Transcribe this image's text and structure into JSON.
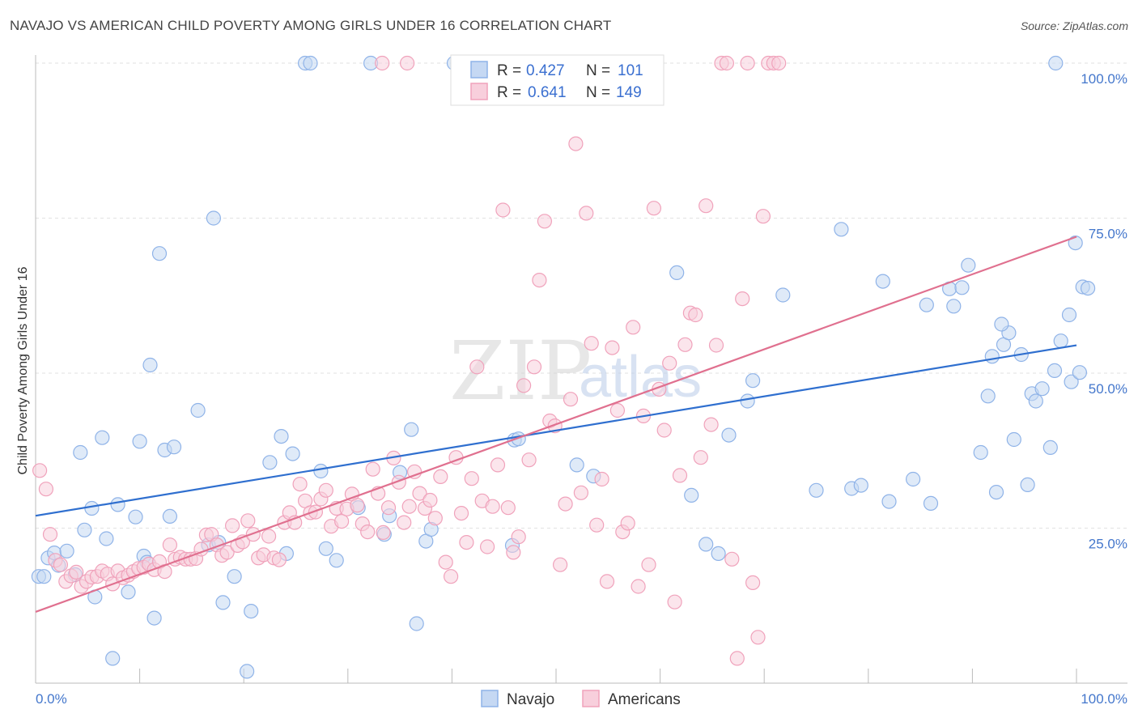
{
  "title": "NAVAJO VS AMERICAN CHILD POVERTY AMONG GIRLS UNDER 16 CORRELATION CHART",
  "source": "Source: ZipAtlas.com",
  "watermark": {
    "part1": "ZIP",
    "part2": "atlas"
  },
  "chart_data": {
    "type": "scatter",
    "ylabel": "Child Poverty Among Girls Under 16",
    "xlim": [
      0,
      100
    ],
    "ylim": [
      0,
      100
    ],
    "x_tick_labels": [
      "0.0%",
      "100.0%"
    ],
    "y_tick_labels": [
      {
        "value": 100,
        "label": "100.0%"
      },
      {
        "value": 75,
        "label": "75.0%"
      },
      {
        "value": 50,
        "label": "50.0%"
      },
      {
        "value": 25,
        "label": "25.0%"
      }
    ],
    "legend": {
      "position": "top-center",
      "rows": [
        {
          "r_label": "R = ",
          "r_value": "0.427",
          "n_label": "N = ",
          "n_value": "101"
        },
        {
          "r_label": "R = ",
          "r_value": "0.641",
          "n_label": "N = ",
          "n_value": "149"
        }
      ]
    },
    "series": [
      {
        "name": "Navajo",
        "color": "#8fb3e8",
        "fill": "#c5d8f3",
        "line_color": "#2f6fcf",
        "trend": {
          "x0": 0,
          "y0": 27.0,
          "x1": 100,
          "y1": 54.5
        },
        "points": [
          [
            0.3,
            17.2
          ],
          [
            0.8,
            17.2
          ],
          [
            1.2,
            20.2
          ],
          [
            1.8,
            21.0
          ],
          [
            2.2,
            19.0
          ],
          [
            3.0,
            21.3
          ],
          [
            3.8,
            17.5
          ],
          [
            4.3,
            37.2
          ],
          [
            4.7,
            24.7
          ],
          [
            5.4,
            28.2
          ],
          [
            5.7,
            13.9
          ],
          [
            6.4,
            39.6
          ],
          [
            6.8,
            23.3
          ],
          [
            7.4,
            4.0
          ],
          [
            7.9,
            28.8
          ],
          [
            8.9,
            14.7
          ],
          [
            9.6,
            26.8
          ],
          [
            10.0,
            39.0
          ],
          [
            10.4,
            20.5
          ],
          [
            10.7,
            19.5
          ],
          [
            11.0,
            51.3
          ],
          [
            11.4,
            10.5
          ],
          [
            11.9,
            69.3
          ],
          [
            12.4,
            37.6
          ],
          [
            12.9,
            26.9
          ],
          [
            13.3,
            38.1
          ],
          [
            15.6,
            44.0
          ],
          [
            16.6,
            22.3
          ],
          [
            17.1,
            75.0
          ],
          [
            17.6,
            22.7
          ],
          [
            18.0,
            13.0
          ],
          [
            19.1,
            17.2
          ],
          [
            20.3,
            1.9
          ],
          [
            20.7,
            11.6
          ],
          [
            22.5,
            35.6
          ],
          [
            23.6,
            39.8
          ],
          [
            24.1,
            20.9
          ],
          [
            24.7,
            37.0
          ],
          [
            25.9,
            100
          ],
          [
            26.4,
            100
          ],
          [
            27.4,
            34.2
          ],
          [
            27.9,
            21.7
          ],
          [
            28.9,
            19.8
          ],
          [
            31.0,
            28.3
          ],
          [
            32.2,
            100
          ],
          [
            33.5,
            24.0
          ],
          [
            34.0,
            27.0
          ],
          [
            35.0,
            34.0
          ],
          [
            36.1,
            40.9
          ],
          [
            36.6,
            9.6
          ],
          [
            37.5,
            22.9
          ],
          [
            38.0,
            24.8
          ],
          [
            40.2,
            100
          ],
          [
            45.8,
            22.2
          ],
          [
            46.0,
            39.2
          ],
          [
            46.4,
            39.4
          ],
          [
            52.0,
            35.2
          ],
          [
            53.6,
            33.4
          ],
          [
            61.6,
            66.2
          ],
          [
            63.0,
            30.3
          ],
          [
            64.4,
            22.4
          ],
          [
            65.6,
            20.9
          ],
          [
            66.6,
            40.0
          ],
          [
            68.4,
            45.5
          ],
          [
            68.9,
            48.8
          ],
          [
            71.8,
            62.6
          ],
          [
            75.0,
            31.1
          ],
          [
            77.4,
            73.2
          ],
          [
            78.4,
            31.4
          ],
          [
            79.3,
            31.9
          ],
          [
            81.4,
            64.8
          ],
          [
            82.0,
            29.3
          ],
          [
            84.3,
            32.9
          ],
          [
            85.6,
            61.0
          ],
          [
            86.0,
            29.0
          ],
          [
            87.8,
            63.6
          ],
          [
            88.2,
            60.8
          ],
          [
            89.0,
            63.8
          ],
          [
            89.6,
            67.4
          ],
          [
            90.8,
            37.2
          ],
          [
            91.5,
            46.3
          ],
          [
            91.9,
            52.7
          ],
          [
            92.3,
            30.8
          ],
          [
            93.0,
            54.6
          ],
          [
            93.5,
            56.5
          ],
          [
            94.0,
            39.3
          ],
          [
            94.7,
            53.0
          ],
          [
            95.3,
            32.0
          ],
          [
            95.7,
            46.7
          ],
          [
            96.1,
            45.5
          ],
          [
            96.7,
            47.5
          ],
          [
            97.5,
            38.0
          ],
          [
            97.9,
            50.4
          ],
          [
            98.5,
            55.2
          ],
          [
            99.3,
            59.4
          ],
          [
            99.5,
            48.6
          ],
          [
            99.9,
            71.0
          ],
          [
            100.3,
            50.1
          ],
          [
            100.6,
            63.9
          ],
          [
            101.1,
            63.7
          ],
          [
            92.8,
            57.9
          ],
          [
            98.0,
            100
          ]
        ]
      },
      {
        "name": "Americans",
        "color": "#f0a2bb",
        "fill": "#f8cfdc",
        "line_color": "#e0708f",
        "trend": {
          "x0": 0,
          "y0": 11.5,
          "x1": 100,
          "y1": 72.0
        },
        "points": [
          [
            0.4,
            34.3
          ],
          [
            1.0,
            31.3
          ],
          [
            1.4,
            24.0
          ],
          [
            1.9,
            19.8
          ],
          [
            2.4,
            19.1
          ],
          [
            2.9,
            16.4
          ],
          [
            3.4,
            17.3
          ],
          [
            3.9,
            17.9
          ],
          [
            4.4,
            15.6
          ],
          [
            4.9,
            16.4
          ],
          [
            5.4,
            17.1
          ],
          [
            5.9,
            17.2
          ],
          [
            6.4,
            18.1
          ],
          [
            6.9,
            17.6
          ],
          [
            7.4,
            16.0
          ],
          [
            7.9,
            18.1
          ],
          [
            8.4,
            17.0
          ],
          [
            8.9,
            17.4
          ],
          [
            9.4,
            18.0
          ],
          [
            9.9,
            18.5
          ],
          [
            10.4,
            18.7
          ],
          [
            10.9,
            19.2
          ],
          [
            11.4,
            18.3
          ],
          [
            11.9,
            19.6
          ],
          [
            12.4,
            18.0
          ],
          [
            12.9,
            22.3
          ],
          [
            13.4,
            20.0
          ],
          [
            13.9,
            20.3
          ],
          [
            14.4,
            20.0
          ],
          [
            14.9,
            20.0
          ],
          [
            15.4,
            20.1
          ],
          [
            15.9,
            21.6
          ],
          [
            16.4,
            23.9
          ],
          [
            16.9,
            24.0
          ],
          [
            17.4,
            22.3
          ],
          [
            17.9,
            20.6
          ],
          [
            18.4,
            21.1
          ],
          [
            18.9,
            25.4
          ],
          [
            19.4,
            22.2
          ],
          [
            19.9,
            22.8
          ],
          [
            20.4,
            26.2
          ],
          [
            20.9,
            24.0
          ],
          [
            21.4,
            20.2
          ],
          [
            21.9,
            20.7
          ],
          [
            22.4,
            23.7
          ],
          [
            22.9,
            20.2
          ],
          [
            23.4,
            19.9
          ],
          [
            23.9,
            25.9
          ],
          [
            24.4,
            27.5
          ],
          [
            24.9,
            25.9
          ],
          [
            25.4,
            32.1
          ],
          [
            25.9,
            29.4
          ],
          [
            26.4,
            27.5
          ],
          [
            26.9,
            27.6
          ],
          [
            27.4,
            29.7
          ],
          [
            27.9,
            31.1
          ],
          [
            28.4,
            25.3
          ],
          [
            28.9,
            28.2
          ],
          [
            29.4,
            26.1
          ],
          [
            29.9,
            28.1
          ],
          [
            30.4,
            30.5
          ],
          [
            30.9,
            28.7
          ],
          [
            31.4,
            25.7
          ],
          [
            31.9,
            24.4
          ],
          [
            32.4,
            34.5
          ],
          [
            32.9,
            30.6
          ],
          [
            33.4,
            24.3
          ],
          [
            33.9,
            28.3
          ],
          [
            34.4,
            36.3
          ],
          [
            34.9,
            32.4
          ],
          [
            35.4,
            25.9
          ],
          [
            35.9,
            28.5
          ],
          [
            36.4,
            34.1
          ],
          [
            36.9,
            30.6
          ],
          [
            37.4,
            28.2
          ],
          [
            37.9,
            29.5
          ],
          [
            38.4,
            26.6
          ],
          [
            38.9,
            33.3
          ],
          [
            39.4,
            19.5
          ],
          [
            39.9,
            17.2
          ],
          [
            40.4,
            36.4
          ],
          [
            40.9,
            27.4
          ],
          [
            41.4,
            22.7
          ],
          [
            41.9,
            33.0
          ],
          [
            42.4,
            51.0
          ],
          [
            42.9,
            29.4
          ],
          [
            43.4,
            22.0
          ],
          [
            43.9,
            28.5
          ],
          [
            44.4,
            35.2
          ],
          [
            44.9,
            76.3
          ],
          [
            45.4,
            28.3
          ],
          [
            45.9,
            21.1
          ],
          [
            46.4,
            23.6
          ],
          [
            46.9,
            48.0
          ],
          [
            47.4,
            36.0
          ],
          [
            47.9,
            51.0
          ],
          [
            48.4,
            65.0
          ],
          [
            48.9,
            74.5
          ],
          [
            49.4,
            42.3
          ],
          [
            49.9,
            41.5
          ],
          [
            50.4,
            19.1
          ],
          [
            50.9,
            28.9
          ],
          [
            51.4,
            45.8
          ],
          [
            51.9,
            87.0
          ],
          [
            52.4,
            30.7
          ],
          [
            52.9,
            75.8
          ],
          [
            53.4,
            54.8
          ],
          [
            53.9,
            25.5
          ],
          [
            54.4,
            32.9
          ],
          [
            54.9,
            16.4
          ],
          [
            55.4,
            54.1
          ],
          [
            55.9,
            44.0
          ],
          [
            56.4,
            24.4
          ],
          [
            56.9,
            25.8
          ],
          [
            57.4,
            57.4
          ],
          [
            57.9,
            15.6
          ],
          [
            58.4,
            43.1
          ],
          [
            58.9,
            19.1
          ],
          [
            59.4,
            76.6
          ],
          [
            59.9,
            47.4
          ],
          [
            60.4,
            40.8
          ],
          [
            60.9,
            51.6
          ],
          [
            61.4,
            13.1
          ],
          [
            61.9,
            33.5
          ],
          [
            62.4,
            54.6
          ],
          [
            62.9,
            59.7
          ],
          [
            63.4,
            59.4
          ],
          [
            63.9,
            36.4
          ],
          [
            64.4,
            77.0
          ],
          [
            64.9,
            41.7
          ],
          [
            65.4,
            54.5
          ],
          [
            65.9,
            100
          ],
          [
            66.4,
            100
          ],
          [
            66.9,
            20.0
          ],
          [
            67.4,
            4.0
          ],
          [
            67.9,
            62.0
          ],
          [
            68.4,
            100
          ],
          [
            68.9,
            16.2
          ],
          [
            69.4,
            7.4
          ],
          [
            69.9,
            75.3
          ],
          [
            70.4,
            100
          ],
          [
            70.9,
            100
          ],
          [
            71.4,
            100
          ],
          [
            44.7,
            100
          ],
          [
            46.5,
            100
          ],
          [
            33.3,
            100
          ],
          [
            40.8,
            100
          ],
          [
            35.7,
            100
          ]
        ]
      }
    ]
  },
  "bottom_legend": [
    "Navajo",
    "Americans"
  ]
}
